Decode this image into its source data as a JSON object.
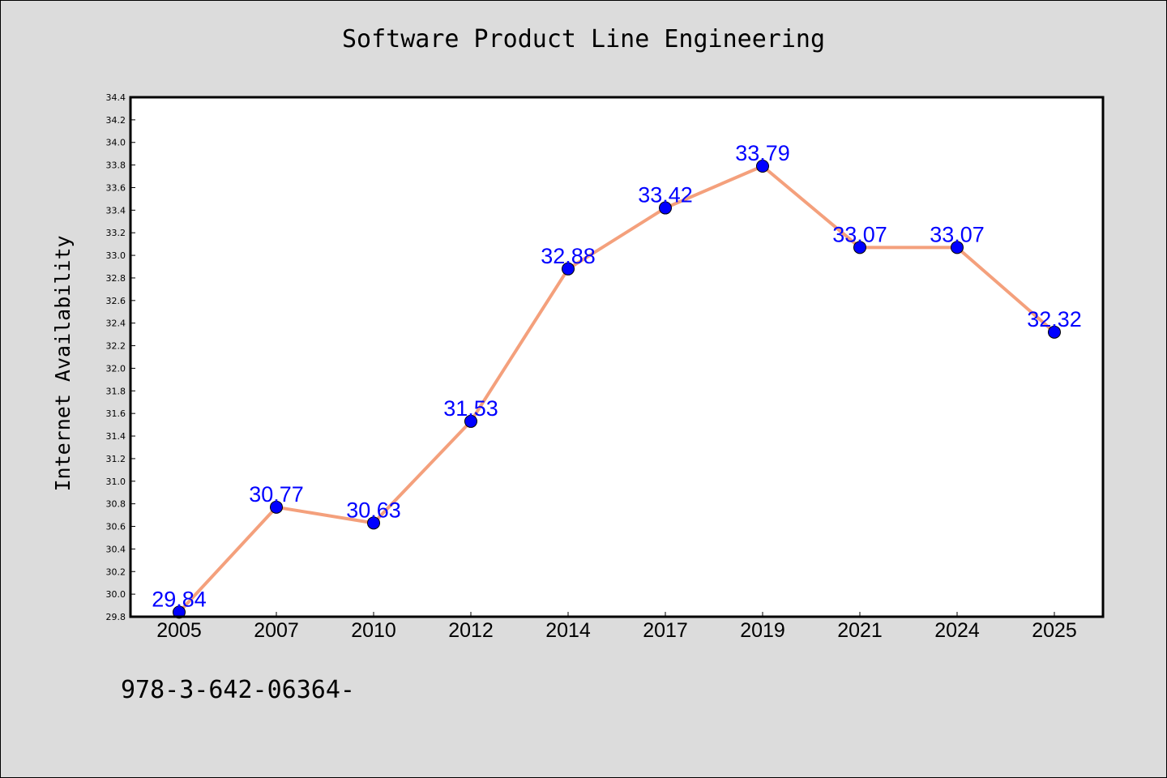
{
  "chart_data": {
    "type": "line",
    "title": "Software Product Line Engineering",
    "xlabel": "",
    "ylabel": "Internet Availability",
    "categories": [
      "2005",
      "2007",
      "2010",
      "2012",
      "2014",
      "2017",
      "2019",
      "2021",
      "2024",
      "2025"
    ],
    "series": [
      {
        "values": [
          29.84,
          30.77,
          30.63,
          31.53,
          32.88,
          33.42,
          33.79,
          33.07,
          33.07,
          32.32
        ],
        "data_labels": [
          "29.84",
          "30.77",
          "30.63",
          "31.53",
          "32.88",
          "33.42",
          "33.79",
          "33.07",
          "33.07",
          "32.32"
        ]
      }
    ],
    "ylim": [
      29.8,
      34.4
    ],
    "yticks": [
      "29.8",
      "30.0",
      "30.2",
      "30.4",
      "30.6",
      "30.8",
      "31.0",
      "31.2",
      "31.4",
      "31.6",
      "31.8",
      "32.0",
      "32.2",
      "32.4",
      "32.6",
      "32.8",
      "33.0",
      "33.2",
      "33.4",
      "33.6",
      "33.8",
      "34.0",
      "34.2",
      "34.4"
    ],
    "grid": false,
    "legend": "none",
    "colors": {
      "line": "#f4a07c",
      "marker": "#0000ff",
      "data_label": "#0000ff",
      "background": "#dcdcdc",
      "plot_background": "#ffffff"
    }
  },
  "footer_text": "978-3-642-06364-"
}
